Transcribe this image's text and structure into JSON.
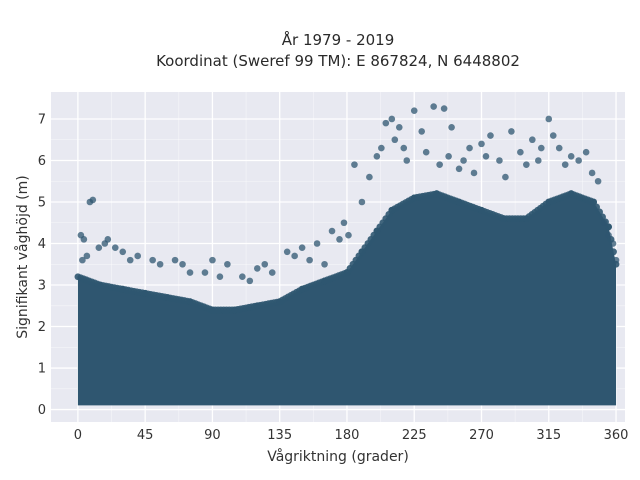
{
  "chart_data": {
    "type": "scatter",
    "title": "År 1979 - 2019",
    "subtitle": "Koordinat (Sweref 99 TM): E 867824, N 6448802",
    "xlabel": "Vågriktning (grader)",
    "ylabel": "Signifikant våghöjd (m)",
    "xlim": [
      -18,
      366
    ],
    "ylim": [
      -0.3,
      7.65
    ],
    "xticks": [
      0,
      45,
      90,
      135,
      180,
      225,
      270,
      315,
      360
    ],
    "yticks": [
      0,
      1,
      2,
      3,
      4,
      5,
      6,
      7
    ],
    "grid": true,
    "legend": "none",
    "colors": {
      "marker": "#2f5670",
      "plot_background": "#e8e9f1",
      "grid": "#ffffff"
    },
    "envelope": {
      "note": "approximate upper bound of the dense point cloud",
      "direction": [
        0,
        15,
        30,
        45,
        60,
        75,
        90,
        105,
        120,
        135,
        150,
        165,
        180,
        190,
        200,
        210,
        225,
        240,
        255,
        270,
        285,
        300,
        315,
        330,
        345,
        355,
        360
      ],
      "height": [
        3.2,
        3.0,
        2.9,
        2.8,
        2.7,
        2.6,
        2.4,
        2.4,
        2.5,
        2.6,
        2.9,
        3.1,
        3.3,
        3.8,
        4.3,
        4.8,
        5.1,
        5.2,
        5.0,
        4.8,
        4.6,
        4.6,
        5.0,
        5.2,
        5.0,
        4.4,
        3.5
      ]
    },
    "points": [
      [
        2,
        4.2
      ],
      [
        4,
        4.1
      ],
      [
        8,
        5.0
      ],
      [
        10,
        5.05
      ],
      [
        3,
        3.6
      ],
      [
        6,
        3.7
      ],
      [
        14,
        3.9
      ],
      [
        18,
        4.0
      ],
      [
        20,
        4.1
      ],
      [
        25,
        3.9
      ],
      [
        30,
        3.8
      ],
      [
        35,
        3.6
      ],
      [
        40,
        3.7
      ],
      [
        50,
        3.6
      ],
      [
        55,
        3.5
      ],
      [
        65,
        3.6
      ],
      [
        70,
        3.5
      ],
      [
        75,
        3.3
      ],
      [
        85,
        3.3
      ],
      [
        90,
        3.6
      ],
      [
        95,
        3.2
      ],
      [
        100,
        3.5
      ],
      [
        110,
        3.2
      ],
      [
        115,
        3.1
      ],
      [
        120,
        3.4
      ],
      [
        125,
        3.5
      ],
      [
        130,
        3.3
      ],
      [
        140,
        3.8
      ],
      [
        145,
        3.7
      ],
      [
        150,
        3.9
      ],
      [
        155,
        3.6
      ],
      [
        160,
        4.0
      ],
      [
        165,
        3.5
      ],
      [
        170,
        4.3
      ],
      [
        175,
        4.1
      ],
      [
        178,
        4.5
      ],
      [
        181,
        4.2
      ],
      [
        185,
        5.9
      ],
      [
        190,
        5.0
      ],
      [
        195,
        5.6
      ],
      [
        200,
        6.1
      ],
      [
        203,
        6.3
      ],
      [
        206,
        6.9
      ],
      [
        210,
        7.0
      ],
      [
        212,
        6.5
      ],
      [
        215,
        6.8
      ],
      [
        218,
        6.3
      ],
      [
        220,
        6.0
      ],
      [
        225,
        7.2
      ],
      [
        230,
        6.7
      ],
      [
        233,
        6.2
      ],
      [
        238,
        7.3
      ],
      [
        242,
        5.9
      ],
      [
        245,
        7.25
      ],
      [
        248,
        6.1
      ],
      [
        250,
        6.8
      ],
      [
        255,
        5.8
      ],
      [
        258,
        6.0
      ],
      [
        262,
        6.3
      ],
      [
        265,
        5.7
      ],
      [
        270,
        6.4
      ],
      [
        273,
        6.1
      ],
      [
        276,
        6.6
      ],
      [
        282,
        6.0
      ],
      [
        286,
        5.6
      ],
      [
        290,
        6.7
      ],
      [
        296,
        6.2
      ],
      [
        300,
        5.9
      ],
      [
        304,
        6.5
      ],
      [
        308,
        6.0
      ],
      [
        310,
        6.3
      ],
      [
        315,
        7.0
      ],
      [
        318,
        6.6
      ],
      [
        322,
        6.3
      ],
      [
        326,
        5.9
      ],
      [
        330,
        6.1
      ],
      [
        335,
        6.0
      ],
      [
        340,
        6.2
      ],
      [
        344,
        5.7
      ],
      [
        348,
        5.5
      ],
      [
        352,
        4.5
      ],
      [
        355,
        4.2
      ],
      [
        358,
        4.0
      ],
      [
        360,
        3.6
      ]
    ]
  }
}
